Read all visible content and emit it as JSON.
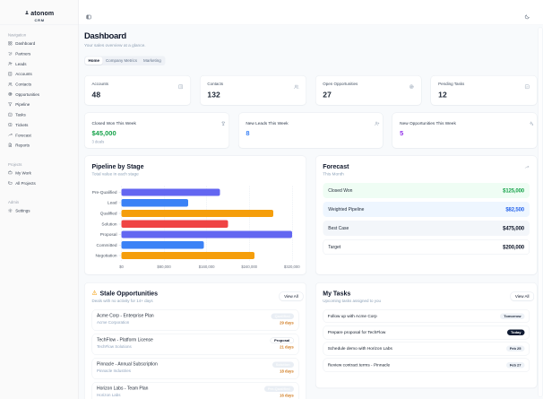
{
  "app": {
    "logo": "atonom",
    "logo_sub": "CRM"
  },
  "topbar": {
    "left_icon": "panel-left",
    "right_icon": "moon"
  },
  "sidebar": {
    "sections": [
      {
        "label": "Navigation",
        "items": [
          {
            "label": "Dashboard",
            "icon": "dashboard"
          },
          {
            "label": "Partners",
            "icon": "handshake"
          },
          {
            "label": "Leads",
            "icon": "user-plus"
          },
          {
            "label": "Accounts",
            "icon": "building"
          },
          {
            "label": "Contacts",
            "icon": "users"
          },
          {
            "label": "Opportunities",
            "icon": "target"
          },
          {
            "label": "Pipeline",
            "icon": "funnel"
          },
          {
            "label": "Tasks",
            "icon": "check-square"
          },
          {
            "label": "Tickets",
            "icon": "ticket"
          },
          {
            "label": "Forecast",
            "icon": "trending-up"
          },
          {
            "label": "Reports",
            "icon": "file-text"
          }
        ]
      },
      {
        "label": "Projects",
        "items": [
          {
            "label": "My Work",
            "icon": "briefcase"
          },
          {
            "label": "All Projects",
            "icon": "folders"
          }
        ]
      },
      {
        "label": "Admin",
        "items": [
          {
            "label": "Settings",
            "icon": "settings"
          }
        ]
      }
    ]
  },
  "page": {
    "title": "Dashboard",
    "subtitle": "Your sales overview at a glance.",
    "tabs": [
      {
        "label": "Home",
        "active": true
      },
      {
        "label": "Company Metrics",
        "active": false
      },
      {
        "label": "Marketing",
        "active": false
      }
    ]
  },
  "kpis": [
    {
      "label": "Accounts",
      "value": "48",
      "icon": "building"
    },
    {
      "label": "Contacts",
      "value": "132",
      "icon": "users"
    },
    {
      "label": "Open Opportunities",
      "value": "27",
      "icon": "target"
    },
    {
      "label": "Pending Tasks",
      "value": "12",
      "icon": "check-square"
    }
  ],
  "weekly": [
    {
      "label": "Closed Won This Week",
      "value": "$45,000",
      "note": "3 deals",
      "color": "#16a34a",
      "icon": "trophy"
    },
    {
      "label": "New Leads This Week",
      "value": "8",
      "note": "",
      "color": "#3b82f6",
      "icon": "user-plus"
    },
    {
      "label": "New Opportunities This Week",
      "value": "5",
      "note": "",
      "color": "#9333ea",
      "icon": "sparkles"
    }
  ],
  "chart_data": {
    "type": "bar",
    "orientation": "horizontal",
    "title": "Pipeline by Stage",
    "subtitle": "Total value in each stage",
    "categories": [
      "Pre-Qualified",
      "Lead",
      "Qualified",
      "Solution",
      "Proposal",
      "Committed",
      "Negotiation"
    ],
    "values": [
      185000,
      125000,
      285000,
      200000,
      320000,
      155000,
      250000
    ],
    "bar_colors": [
      "#6366f1",
      "#3b82f6",
      "#f59e0b",
      "#ef4444",
      "#6366f1",
      "#3b82f6",
      "#f59e0b"
    ],
    "xlim": [
      0,
      320000
    ],
    "xticks": [
      0,
      80000,
      160000,
      240000,
      320000
    ],
    "xtick_labels": [
      "$0",
      "$80,000",
      "$160,000",
      "$240,000",
      "$320,000"
    ],
    "grid": "dashed-vertical",
    "legend": "none"
  },
  "forecast": {
    "title": "Forecast",
    "subtitle": "This Month",
    "icon": "trending-up",
    "rows": [
      {
        "label": "Closed Won",
        "value": "$125,000",
        "bg": "#effdf4",
        "border": "transparent",
        "color": "#16a34a"
      },
      {
        "label": "Weighted Pipeline",
        "value": "$82,500",
        "bg": "#eef6ff",
        "border": "transparent",
        "color": "#2563eb"
      },
      {
        "label": "Best Case",
        "value": "$475,000",
        "bg": "#f3f6fa",
        "border": "transparent",
        "color": "#0f172a"
      },
      {
        "label": "Target",
        "value": "$200,000",
        "bg": "#ffffff",
        "border": "#e7ebf0",
        "color": "#0f172a"
      }
    ]
  },
  "stale": {
    "title": "Stale Opportunities",
    "subtitle": "Deals with no activity for 14+ days",
    "icon": "alert-triangle",
    "action": "View All",
    "items": [
      {
        "title": "Acme Corp - Enterprise Plan",
        "company": "Acme Corporation",
        "stage": "Qualified",
        "variant": "muted",
        "days": "29 days"
      },
      {
        "title": "TechFlow - Platform License",
        "company": "TechFlow Solutions",
        "stage": "Proposal",
        "variant": "outline",
        "days": "21 days"
      },
      {
        "title": "Pinnacle - Annual Subscription",
        "company": "Pinnacle Industries",
        "stage": "Solution",
        "variant": "muted",
        "days": "18 days"
      },
      {
        "title": "Horizon Labs - Team Plan",
        "company": "Horizon Labs",
        "stage": "Pre-Qualified",
        "variant": "muted",
        "days": "16 days"
      }
    ]
  },
  "tasks": {
    "title": "My Tasks",
    "subtitle": "Upcoming tasks assigned to you",
    "action": "View All",
    "items": [
      {
        "title": "Follow up with Acme Corp",
        "due": "Tomorrow",
        "variant": "light"
      },
      {
        "title": "Prepare proposal for TechFlow",
        "due": "Today",
        "variant": "dark"
      },
      {
        "title": "Schedule demo with Horizon Labs",
        "due": "Feb 25",
        "variant": "light"
      },
      {
        "title": "Review contract terms - Pinnacle",
        "due": "Feb 27",
        "variant": "light"
      }
    ]
  }
}
